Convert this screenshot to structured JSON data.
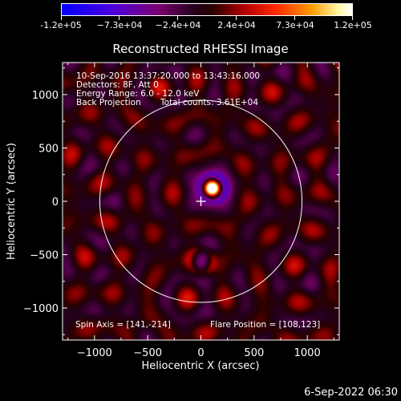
{
  "colors": {
    "background": "#000000",
    "foreground": "#ffffff"
  },
  "colorbar": {
    "labels": [
      "-1.2e+05",
      "−7.3e+04",
      "−2.4e+04",
      "2.4e+04",
      "7.3e+04",
      "1.2e+05"
    ],
    "scale": "blue-purple-black-red-yellow-white"
  },
  "chart_data": {
    "type": "heatmap",
    "title": "Reconstructed RHESSI Image",
    "xlabel": "Heliocentric X (arcsec)",
    "ylabel": "Heliocentric Y (arcsec)",
    "xlim": [
      -1300,
      1300
    ],
    "ylim": [
      -1300,
      1300
    ],
    "xticks": [
      -1000,
      -500,
      0,
      500,
      1000
    ],
    "yticks": [
      1000,
      500,
      0,
      -500,
      -1000
    ],
    "xtick_labels": [
      "−1000",
      "−500",
      "0",
      "500",
      "1000"
    ],
    "ytick_labels": [
      "1000",
      "500",
      "0",
      "−500",
      "−1000"
    ],
    "solar_radius_arcsec": 950,
    "sun_center": [
      0,
      0
    ],
    "source_peak": [
      108,
      123
    ],
    "secondary_minimum": [
      0,
      -560
    ],
    "color_range": [
      -120000,
      120000
    ],
    "annotations": [
      "10-Sep-2016 13:37:20.000 to 13:43:16.000",
      "Detectors: 8F, Att 0",
      "Energy Range: 6.0 - 12.0 keV",
      "Back Projection",
      "Total counts: 3.61E+04",
      "Spin Axis = [141,-214]",
      "Flare Position = [108,123]"
    ]
  },
  "timestamp": "6-Sep-2022 06:30"
}
